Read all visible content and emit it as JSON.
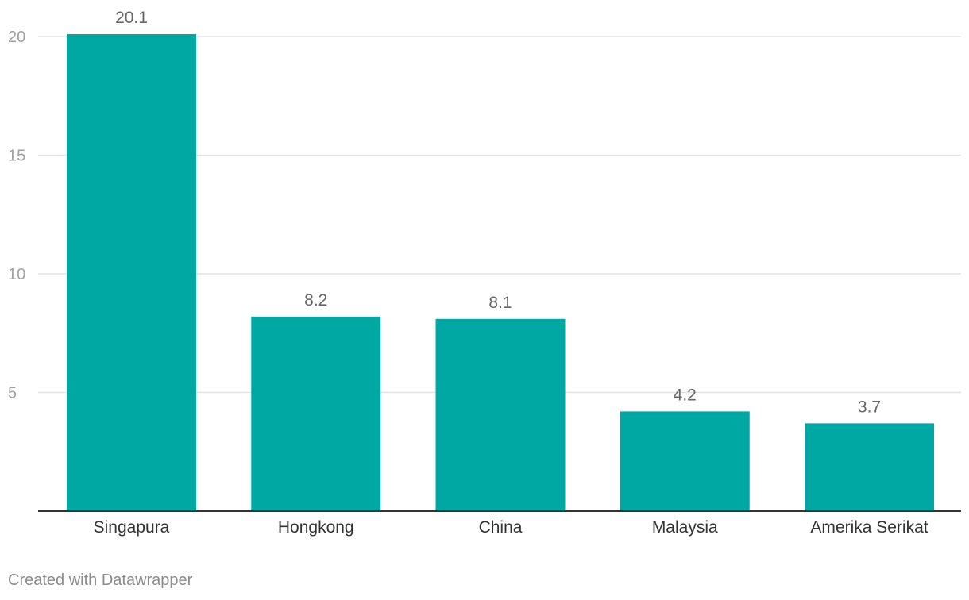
{
  "chart_data": {
    "type": "bar",
    "categories": [
      "Singapura",
      "Hongkong",
      "China",
      "Malaysia",
      "Amerika Serikat"
    ],
    "values": [
      20.1,
      8.2,
      8.1,
      4.2,
      3.7
    ],
    "value_labels": [
      "20.1",
      "8.2",
      "8.1",
      "4.2",
      "3.7"
    ],
    "yticks": [
      5,
      10,
      15,
      20
    ],
    "ylim": [
      0,
      20
    ],
    "grid": true,
    "colors": {
      "bar": "#00a8a3",
      "grid": "#e2e2e2",
      "baseline": "#333333",
      "tick_label": "#a0a0a0",
      "value_label": "#666666",
      "category_label": "#333333"
    }
  },
  "footer": {
    "credit": "Created with Datawrapper"
  }
}
